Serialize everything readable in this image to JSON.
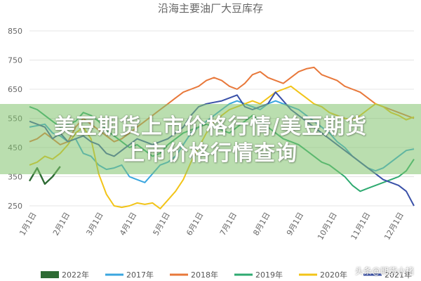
{
  "chart_data": {
    "type": "line",
    "title": "沿海主要油厂大豆库存",
    "xlabel": "",
    "ylabel": "",
    "ylim": [
      250,
      850
    ],
    "yticks": [
      250,
      350,
      450,
      550,
      650,
      750,
      850
    ],
    "x_labels": [
      "1月1日",
      "2月1日",
      "3月1日",
      "4月1日",
      "5月1日",
      "6月1日",
      "7月1日",
      "8月1日",
      "9月1日",
      "10月1日",
      "11月1日",
      "12月1日"
    ],
    "grid": true,
    "legend_position": "bottom",
    "series": [
      {
        "name": "2022年",
        "color": "#2e6b34",
        "x": [
          1,
          2,
          3,
          4,
          5
        ],
        "values": [
          335,
          380,
          325,
          350,
          385
        ]
      },
      {
        "name": "2017年",
        "color": "#3aa6df",
        "x": [
          1,
          2,
          3,
          4,
          5,
          6,
          7,
          8,
          9,
          10,
          11,
          12,
          13,
          14,
          15,
          16,
          17,
          18,
          19,
          20,
          21,
          22,
          23,
          24,
          25,
          26,
          27,
          28,
          29,
          30,
          31,
          32,
          33,
          34,
          35,
          36,
          37,
          38,
          39,
          40,
          41,
          42,
          43,
          44,
          45,
          46,
          47,
          48,
          49,
          50,
          51
        ],
        "values": [
          520,
          525,
          530,
          500,
          490,
          470,
          480,
          430,
          420,
          390,
          375,
          380,
          390,
          350,
          340,
          330,
          360,
          390,
          400,
          420,
          460,
          500,
          520,
          540,
          560,
          580,
          600,
          610,
          600,
          590,
          580,
          600,
          610,
          600,
          590,
          580,
          560,
          540,
          520,
          500,
          470,
          450,
          420,
          400,
          380,
          370,
          380,
          400,
          420,
          440,
          445
        ]
      },
      {
        "name": "2018年",
        "color": "#e8783a",
        "x": [
          1,
          2,
          3,
          4,
          5,
          6,
          7,
          8,
          9,
          10,
          11,
          12,
          13,
          14,
          15,
          16,
          17,
          18,
          19,
          20,
          21,
          22,
          23,
          24,
          25,
          26,
          27,
          28,
          29,
          30,
          31,
          32,
          33,
          34,
          35,
          36,
          37,
          38,
          39,
          40,
          41,
          42,
          43,
          44,
          45,
          46,
          47,
          48,
          49,
          50,
          51
        ],
        "values": [
          470,
          480,
          500,
          480,
          460,
          470,
          520,
          550,
          530,
          510,
          490,
          470,
          480,
          500,
          520,
          540,
          560,
          580,
          600,
          620,
          640,
          650,
          660,
          680,
          690,
          680,
          660,
          650,
          670,
          700,
          710,
          690,
          680,
          670,
          690,
          710,
          720,
          725,
          700,
          690,
          680,
          660,
          650,
          640,
          620,
          600,
          590,
          580,
          570,
          560,
          550
        ]
      },
      {
        "name": "2019年",
        "color": "#2eaa70",
        "x": [
          1,
          2,
          3,
          4,
          5,
          6,
          7,
          8,
          9,
          10,
          11,
          12,
          13,
          14,
          15,
          16,
          17,
          18,
          19,
          20,
          21,
          22,
          23,
          24,
          25,
          26,
          27,
          28,
          29,
          30,
          31,
          32,
          33,
          34,
          35,
          36,
          37,
          38,
          39,
          40,
          41,
          42,
          43,
          44,
          45,
          46,
          47,
          48,
          49,
          50,
          51
        ],
        "values": [
          590,
          580,
          560,
          540,
          520,
          530,
          540,
          570,
          560,
          540,
          510,
          490,
          470,
          450,
          460,
          440,
          420,
          430,
          460,
          480,
          500,
          510,
          520,
          530,
          520,
          510,
          500,
          520,
          540,
          560,
          540,
          520,
          500,
          480,
          470,
          460,
          440,
          420,
          400,
          390,
          370,
          350,
          320,
          300,
          310,
          320,
          330,
          340,
          350,
          370,
          410
        ]
      },
      {
        "name": "2020年",
        "color": "#f2c418",
        "x": [
          1,
          2,
          3,
          4,
          5,
          6,
          7,
          8,
          9,
          10,
          11,
          12,
          13,
          14,
          15,
          16,
          17,
          18,
          19,
          20,
          21,
          22,
          23,
          24,
          25,
          26,
          27,
          28,
          29,
          30,
          31,
          32,
          33,
          34,
          35,
          36,
          37,
          38,
          39,
          40,
          41,
          42,
          43,
          44,
          45,
          46,
          47,
          48,
          49,
          50,
          51
        ],
        "values": [
          390,
          400,
          420,
          410,
          430,
          460,
          500,
          520,
          480,
          360,
          290,
          250,
          245,
          250,
          260,
          255,
          260,
          240,
          270,
          300,
          340,
          400,
          450,
          500,
          540,
          560,
          580,
          590,
          600,
          610,
          600,
          620,
          640,
          650,
          660,
          640,
          620,
          600,
          590,
          570,
          560,
          550,
          545,
          560,
          580,
          600,
          590,
          570,
          560,
          545,
          555
        ]
      },
      {
        "name": "2021年",
        "color": "#3950a8",
        "x": [
          1,
          2,
          3,
          4,
          5,
          6,
          7,
          8,
          9,
          10,
          11,
          12,
          13,
          14,
          15,
          16,
          17,
          18,
          19,
          20,
          21,
          22,
          23,
          24,
          25,
          26,
          27,
          28,
          29,
          30,
          31,
          32,
          33,
          34,
          35,
          36,
          37,
          38,
          39,
          40,
          41,
          42,
          43,
          44,
          45,
          46,
          47,
          48,
          49,
          50,
          51
        ],
        "values": [
          540,
          530,
          520,
          480,
          500,
          470,
          480,
          490,
          470,
          460,
          430,
          420,
          440,
          460,
          480,
          470,
          460,
          470,
          480,
          500,
          520,
          560,
          590,
          600,
          605,
          610,
          620,
          630,
          590,
          580,
          590,
          600,
          640,
          610,
          580,
          560,
          540,
          520,
          500,
          480,
          460,
          440,
          420,
          400,
          380,
          360,
          340,
          330,
          320,
          300,
          250
        ]
      }
    ]
  },
  "banner": {
    "line1": "美豆期货上市价格行情/美豆期货",
    "line2": "上市价格行情查询"
  },
  "watermark": "头条@期货小楮"
}
